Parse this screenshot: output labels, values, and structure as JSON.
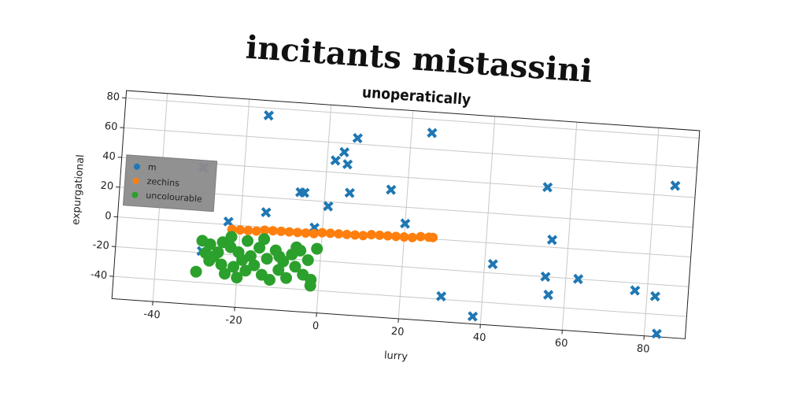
{
  "chart_data": {
    "type": "scatter",
    "title": "incitants mistassini",
    "subtitle": "unoperatically",
    "x_label": "lurry",
    "y_label": "expurgational",
    "xlim": [
      -50,
      90
    ],
    "ylim": [
      -55,
      85
    ],
    "xticks": [
      -40,
      -20,
      0,
      20,
      40,
      60,
      80
    ],
    "yticks": [
      -40,
      -20,
      0,
      20,
      40,
      60,
      80
    ],
    "grid": true,
    "legend": "center left",
    "series": [
      {
        "name": "m",
        "color": "#1f77b4",
        "marker": "x",
        "x": [
          -15,
          -30,
          -23,
          -29,
          -14,
          -6,
          -5,
          -2,
          1,
          2,
          4,
          5,
          7,
          6,
          16,
          20,
          25,
          30,
          38,
          42,
          54,
          56,
          55,
          56,
          63,
          77,
          82,
          83,
          85
        ],
        "values": [
          75,
          37,
          2,
          -19,
          10,
          25,
          25,
          2,
          17,
          48,
          54,
          46,
          64,
          27,
          31,
          9,
          71,
          -38,
          -50,
          -14,
          40,
          5,
          -20,
          -32,
          -20,
          -25,
          -28,
          -53,
          47
        ]
      },
      {
        "name": "zechins",
        "color": "#ff7f0e",
        "marker": "o",
        "x": [
          -22,
          -20,
          -18,
          -16,
          -14,
          -12,
          -10,
          -8,
          -6,
          -4,
          -2,
          0,
          2,
          4,
          6,
          8,
          10,
          12,
          14,
          16,
          18,
          20,
          22,
          24,
          26,
          27
        ],
        "values": [
          -3,
          -3,
          -3,
          -3,
          -2,
          -2,
          -2,
          -2,
          -2,
          -2,
          -2,
          -1,
          -1,
          -1,
          -1,
          -1,
          -1,
          0,
          0,
          0,
          0,
          0,
          0,
          1,
          1,
          1
        ]
      },
      {
        "name": "uncolourable",
        "color": "#2ca02c",
        "marker": "o",
        "x": [
          -30,
          -29,
          -28,
          -27,
          -26,
          -25,
          -24,
          -23,
          -22,
          -21,
          -20,
          -19,
          -18,
          -17,
          -16,
          -15,
          -14,
          -13,
          -12,
          -11,
          -10,
          -9,
          -8,
          -7,
          -6,
          -5,
          -4,
          -3,
          -2,
          -1,
          -24,
          -22,
          -18,
          -14,
          -10,
          -6,
          -2,
          -27,
          -20
        ],
        "values": [
          -33,
          -12,
          -20,
          -14,
          -22,
          -19,
          -12,
          -33,
          -8,
          -28,
          -18,
          -23,
          -30,
          -20,
          -26,
          -14,
          -32,
          -21,
          -35,
          -15,
          -28,
          -22,
          -33,
          -17,
          -25,
          -14,
          -30,
          -20,
          -33,
          -12,
          -27,
          -15,
          -10,
          -8,
          -19,
          -12,
          -37,
          -25,
          -35
        ]
      }
    ]
  }
}
